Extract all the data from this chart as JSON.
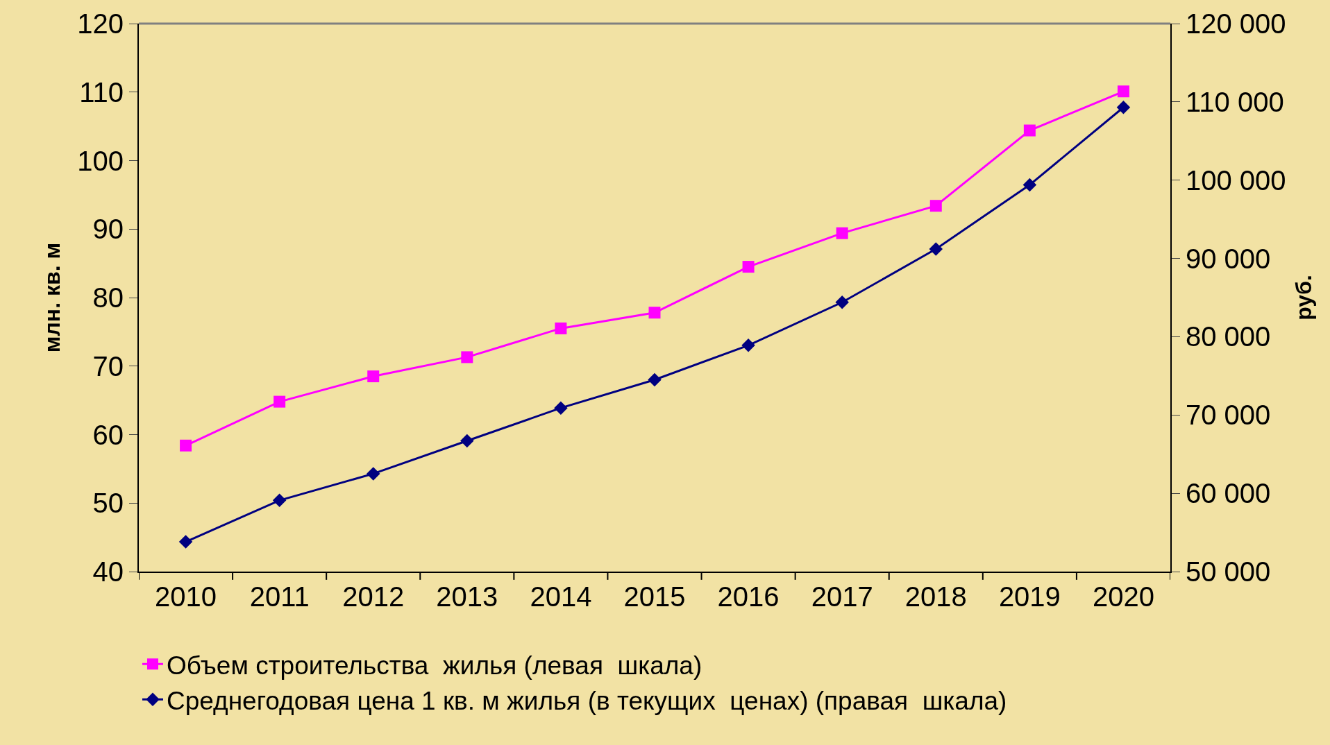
{
  "chart_data": {
    "type": "line",
    "categories": [
      "2010",
      "2011",
      "2012",
      "2013",
      "2014",
      "2015",
      "2016",
      "2017",
      "2018",
      "2019",
      "2020"
    ],
    "ylabel": "млн. кв. м",
    "y2label": "руб.",
    "series": [
      {
        "name": "Объем строительства  жилья (левая  шкала)",
        "color": "#ff00ff",
        "marker": "square",
        "values": [
          58.4,
          64.8,
          68.5,
          71.3,
          75.5,
          77.8,
          84.5,
          89.4,
          93.4,
          104.4,
          110.1
        ]
      },
      {
        "name": "Среднегодовая цена 1 кв. м жилья (в текущих  ценах) (правая  шкала)",
        "color": "#000080",
        "marker": "diamond",
        "axis": "y2",
        "values": [
          53800,
          59100,
          62500,
          66700,
          70900,
          74500,
          78900,
          84400,
          91200,
          99400,
          109300
        ]
      }
    ],
    "ylim": [
      40,
      120
    ],
    "yticks": [
      40,
      50,
      60,
      70,
      80,
      90,
      100,
      110,
      120
    ],
    "y2lim": [
      50000,
      120000
    ],
    "y2ticks": [
      {
        "value": 50000,
        "label": "50 000"
      },
      {
        "value": 60000,
        "label": "60 000"
      },
      {
        "value": 70000,
        "label": "70 000"
      },
      {
        "value": 80000,
        "label": "80 000"
      },
      {
        "value": 90000,
        "label": "90 000"
      },
      {
        "value": 100000,
        "label": "100 000"
      },
      {
        "value": 110000,
        "label": "110 000"
      },
      {
        "value": 120000,
        "label": "120 000"
      }
    ],
    "grid": false,
    "legend": "bottom"
  }
}
